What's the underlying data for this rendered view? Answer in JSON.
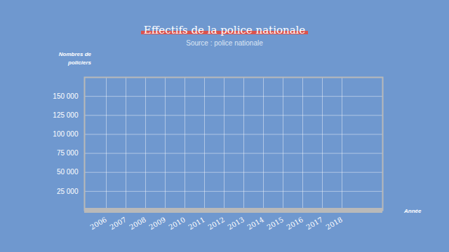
{
  "chart_data": {
    "type": "line",
    "title": "Effectifs de la police nationale",
    "subtitle": "Source : police nationale",
    "y_label": "Nombres de policiers",
    "x_label": "Année",
    "categories": [
      "2006",
      "2007",
      "2008",
      "2009",
      "2010",
      "2011",
      "2012",
      "2013",
      "2014",
      "2015",
      "2016",
      "2017",
      "2018"
    ],
    "values": [
      null,
      null,
      null,
      null,
      null,
      null,
      null,
      null,
      null,
      null,
      null,
      null,
      null
    ],
    "ylim": [
      0,
      175000
    ],
    "yticks": [
      {
        "value": 25000,
        "label": "25 000"
      },
      {
        "value": 50000,
        "label": "50 000"
      },
      {
        "value": 75000,
        "label": "75 000"
      },
      {
        "value": 100000,
        "label": "100 000"
      },
      {
        "value": 125000,
        "label": "125 000"
      },
      {
        "value": 150000,
        "label": "150 000"
      }
    ],
    "grid": true
  }
}
